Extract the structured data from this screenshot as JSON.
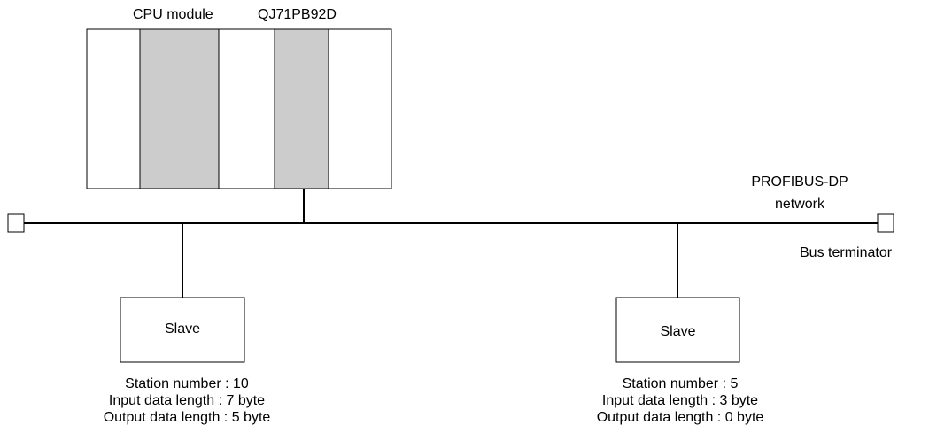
{
  "colors": {
    "line": "#000000",
    "background": "#ffffff",
    "highlighted_slot": "#cccccc"
  },
  "plc": {
    "cpu_label": "CPU module",
    "module_label": "QJ71PB92D"
  },
  "network": {
    "name_line1": "PROFIBUS-DP",
    "name_line2": "network",
    "terminator_label": "Bus terminator"
  },
  "slaves": [
    {
      "label": "Slave",
      "station": "Station number : 10",
      "input": "Input data length : 7 byte",
      "output": "Output data length : 5 byte"
    },
    {
      "label": "Slave",
      "station": "Station number : 5",
      "input": "Input data length : 3 byte",
      "output": "Output data length : 0 byte"
    }
  ]
}
